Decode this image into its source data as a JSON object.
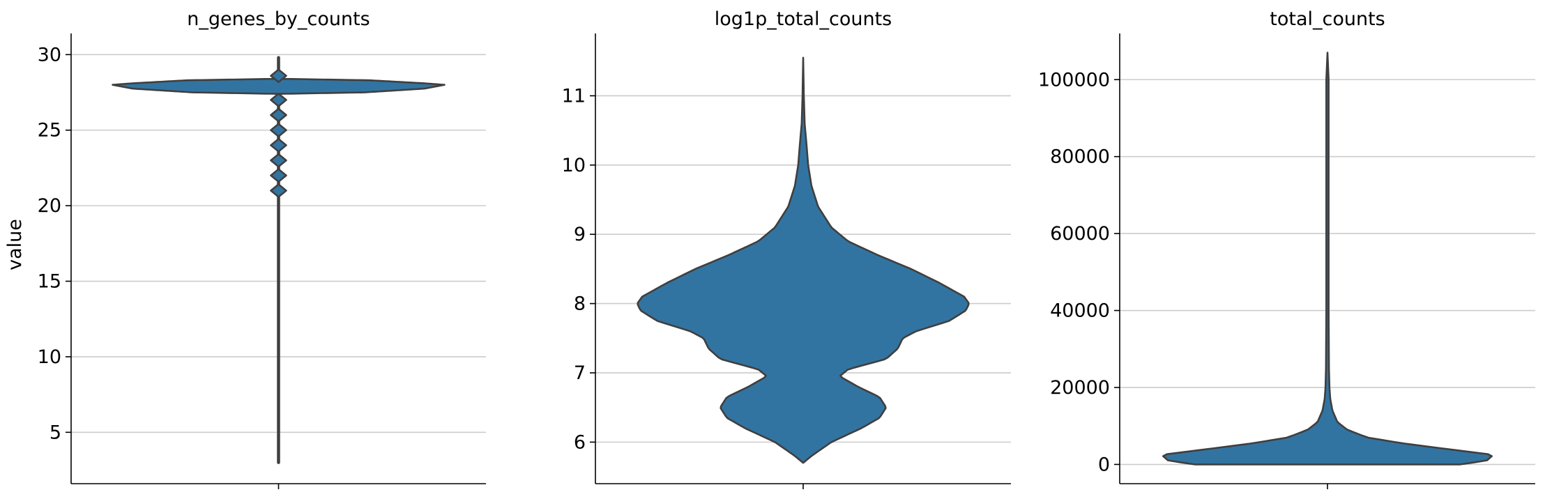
{
  "chart_data": [
    {
      "type": "violin",
      "title": "n_genes_by_counts",
      "xlabel": "",
      "ylabel": "value",
      "ylim": [
        1.6,
        31.4
      ],
      "yticks": [
        5,
        10,
        15,
        20,
        25,
        30
      ],
      "grid": true,
      "color": "#3274a1",
      "line_range": [
        3.0,
        29.8
      ],
      "density_profile": [
        {
          "y": 27.4,
          "w": 0.0
        },
        {
          "y": 27.5,
          "w": 0.52
        },
        {
          "y": 27.75,
          "w": 0.88
        },
        {
          "y": 28.0,
          "w": 1.0
        },
        {
          "y": 28.1,
          "w": 0.88
        },
        {
          "y": 28.3,
          "w": 0.55
        },
        {
          "y": 28.4,
          "w": 0.0
        }
      ],
      "minor_modes": [
        28.6,
        27.0,
        26.0,
        25.0,
        24.0,
        23.0,
        22.0,
        21.0
      ]
    },
    {
      "type": "violin",
      "title": "log1p_total_counts",
      "xlabel": "",
      "ylabel": "",
      "ylim": [
        5.4,
        11.9
      ],
      "yticks": [
        6,
        7,
        8,
        9,
        10,
        11
      ],
      "grid": true,
      "color": "#3274a1",
      "density_profile": [
        {
          "y": 5.7,
          "w": 0.0
        },
        {
          "y": 5.8,
          "w": 0.05
        },
        {
          "y": 6.0,
          "w": 0.17
        },
        {
          "y": 6.2,
          "w": 0.35
        },
        {
          "y": 6.35,
          "w": 0.46
        },
        {
          "y": 6.5,
          "w": 0.5
        },
        {
          "y": 6.65,
          "w": 0.46
        },
        {
          "y": 6.8,
          "w": 0.33
        },
        {
          "y": 6.95,
          "w": 0.22
        },
        {
          "y": 7.05,
          "w": 0.27
        },
        {
          "y": 7.2,
          "w": 0.5
        },
        {
          "y": 7.35,
          "w": 0.57
        },
        {
          "y": 7.5,
          "w": 0.6
        },
        {
          "y": 7.6,
          "w": 0.68
        },
        {
          "y": 7.75,
          "w": 0.88
        },
        {
          "y": 7.9,
          "w": 0.98
        },
        {
          "y": 8.0,
          "w": 1.0
        },
        {
          "y": 8.1,
          "w": 0.97
        },
        {
          "y": 8.3,
          "w": 0.82
        },
        {
          "y": 8.5,
          "w": 0.65
        },
        {
          "y": 8.7,
          "w": 0.45
        },
        {
          "y": 8.9,
          "w": 0.27
        },
        {
          "y": 9.1,
          "w": 0.17
        },
        {
          "y": 9.4,
          "w": 0.09
        },
        {
          "y": 9.7,
          "w": 0.05
        },
        {
          "y": 10.0,
          "w": 0.03
        },
        {
          "y": 10.3,
          "w": 0.02
        },
        {
          "y": 10.6,
          "w": 0.009
        },
        {
          "y": 11.0,
          "w": 0.004
        },
        {
          "y": 11.55,
          "w": 0.0
        }
      ]
    },
    {
      "type": "violin",
      "title": "total_counts",
      "xlabel": "",
      "ylabel": "",
      "ylim": [
        -5000,
        112000
      ],
      "yticks": [
        0,
        20000,
        40000,
        60000,
        80000,
        100000
      ],
      "grid": true,
      "color": "#3274a1",
      "density_profile": [
        {
          "y": 0,
          "w": 0.8
        },
        {
          "y": 1000,
          "w": 0.96
        },
        {
          "y": 2500,
          "w": 1.0
        },
        {
          "y": 4000,
          "w": 0.72
        },
        {
          "y": 5500,
          "w": 0.45
        },
        {
          "y": 7000,
          "w": 0.24
        },
        {
          "y": 9000,
          "w": 0.12
        },
        {
          "y": 11000,
          "w": 0.06
        },
        {
          "y": 14000,
          "w": 0.03
        },
        {
          "y": 17000,
          "w": 0.017
        },
        {
          "y": 20000,
          "w": 0.012
        },
        {
          "y": 25000,
          "w": 0.009
        },
        {
          "y": 40000,
          "w": 0.007
        },
        {
          "y": 70000,
          "w": 0.007
        },
        {
          "y": 100000,
          "w": 0.007
        },
        {
          "y": 107000,
          "w": 0.0
        }
      ]
    }
  ]
}
